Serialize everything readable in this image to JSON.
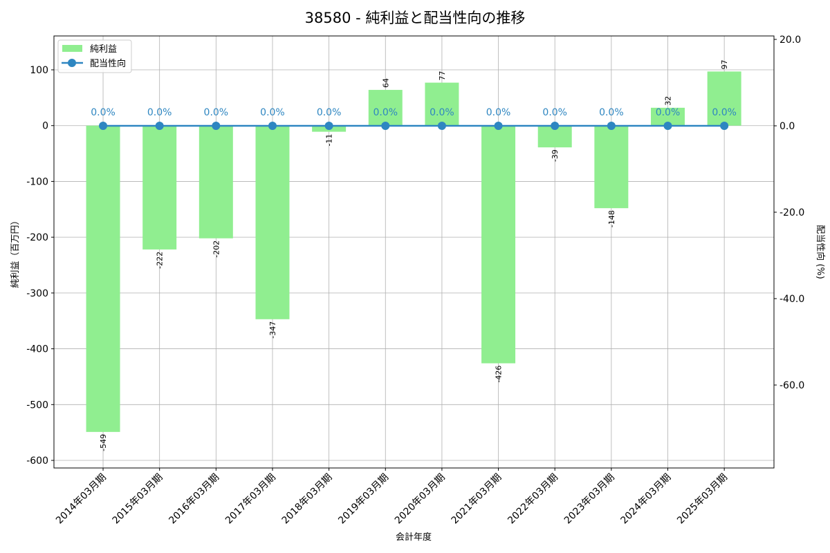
{
  "chart_data": {
    "type": "bar+line",
    "title": "38580 - 純利益と配当性向の推移",
    "xlabel": "会計年度",
    "ylabel": "純利益（百万円）",
    "y2label": "配当性向 (%)",
    "categories": [
      "2014年03月期",
      "2015年03月期",
      "2016年03月期",
      "2017年03月期",
      "2018年03月期",
      "2019年03月期",
      "2020年03月期",
      "2021年03月期",
      "2022年03月期",
      "2023年03月期",
      "2024年03月期",
      "2025年03月期"
    ],
    "series": [
      {
        "name": "純利益",
        "type": "bar",
        "axis": "left",
        "color": "#90ee90",
        "values": [
          -549,
          -222,
          -202,
          -347,
          -11,
          64,
          77,
          -426,
          -39,
          -148,
          32,
          97
        ]
      },
      {
        "name": "配当性向",
        "type": "line",
        "axis": "right",
        "color": "#2e86c1",
        "values": [
          0,
          0,
          0,
          0,
          0,
          0,
          0,
          0,
          0,
          0,
          0,
          0
        ],
        "labels": [
          "0.0%",
          "0.0%",
          "0.0%",
          "0.0%",
          "0.0%",
          "0.0%",
          "0.0%",
          "0.0%",
          "0.0%",
          "0.0%",
          "0.0%",
          "0.0%"
        ]
      }
    ],
    "ylim": [
      -613.6,
      160.7
    ],
    "yticks": [
      100,
      0,
      -100,
      -200,
      -300,
      -400,
      -500,
      -600
    ],
    "y2lim": [
      -79.2,
      20.8
    ],
    "y2ticks": [
      "20.0",
      "0.0",
      "-20.0",
      "-40.0",
      "-60.0"
    ],
    "grid": true,
    "legend": "top-left"
  }
}
